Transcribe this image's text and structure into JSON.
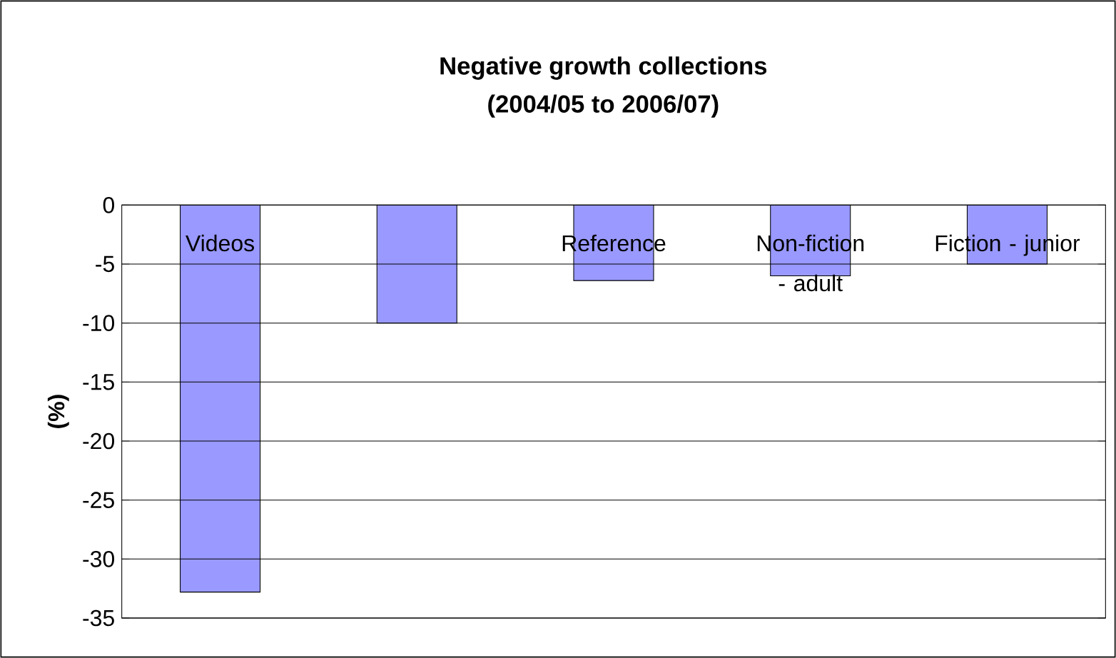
{
  "chart_data": {
    "type": "bar",
    "title": "Negative growth collections",
    "subtitle": "(2004/05 to 2006/07)",
    "ylabel": "(%)",
    "categories": [
      "Videos",
      null,
      "Reference",
      "Non-fiction - adult",
      "Fiction - junior"
    ],
    "values": [
      -32.8,
      -10,
      -6.4,
      -6,
      -5
    ],
    "color": "#9999ff",
    "ylim": [
      -35,
      0
    ],
    "yticks": [
      -35,
      -30,
      -25,
      -20,
      -15,
      -10,
      -5,
      0
    ],
    "grid": "y"
  }
}
